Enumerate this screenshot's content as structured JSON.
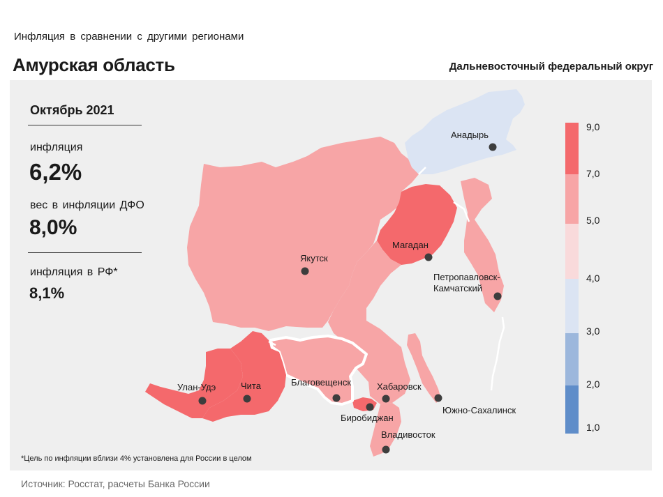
{
  "header": {
    "subtitle": "Инфляция  в сравнении  с другими  регионами",
    "title": "Амурская область",
    "district": "Дальневосточный федеральный округ"
  },
  "info": {
    "period": "Октябрь 2021",
    "inflation_label": "инфляция",
    "inflation_value": "6,2%",
    "weight_label": "вес в инфляции  ДФО",
    "weight_value": "8,0%",
    "russia_label": "инфляция  в РФ*",
    "russia_value": "8,1%"
  },
  "footnote": "*Цель по инфляции вблизи 4% установлена для России в целом",
  "source": "Источник: Росстат, расчеты Банка России",
  "colors": {
    "band_9_7": "#f4696c",
    "band_7_5": "#f7a5a6",
    "band_5_4": "#f9dadb",
    "band_4_3": "#dbe4f3",
    "band_3_2": "#9cb7dc",
    "band_2_1": "#5f8dc9",
    "highlight_border": "#ffffff",
    "city_dot": "#3d3d3d"
  },
  "legend": {
    "ticks": [
      "9,0",
      "7,0",
      "5,0",
      "4,0",
      "3,0",
      "2,0",
      "1,0"
    ]
  },
  "cities": [
    {
      "name": "Анадырь"
    },
    {
      "name": "Якутск"
    },
    {
      "name": "Магадан"
    },
    {
      "name": "Петропавловск-"
    },
    {
      "name": "Камчатский"
    },
    {
      "name": "Благовещенск"
    },
    {
      "name": "Хабаровск"
    },
    {
      "name": "Биробиджан"
    },
    {
      "name": "Южно-Сахалинск"
    },
    {
      "name": "Владивосток"
    },
    {
      "name": "Улан-Удэ"
    },
    {
      "name": "Чита"
    }
  ]
}
